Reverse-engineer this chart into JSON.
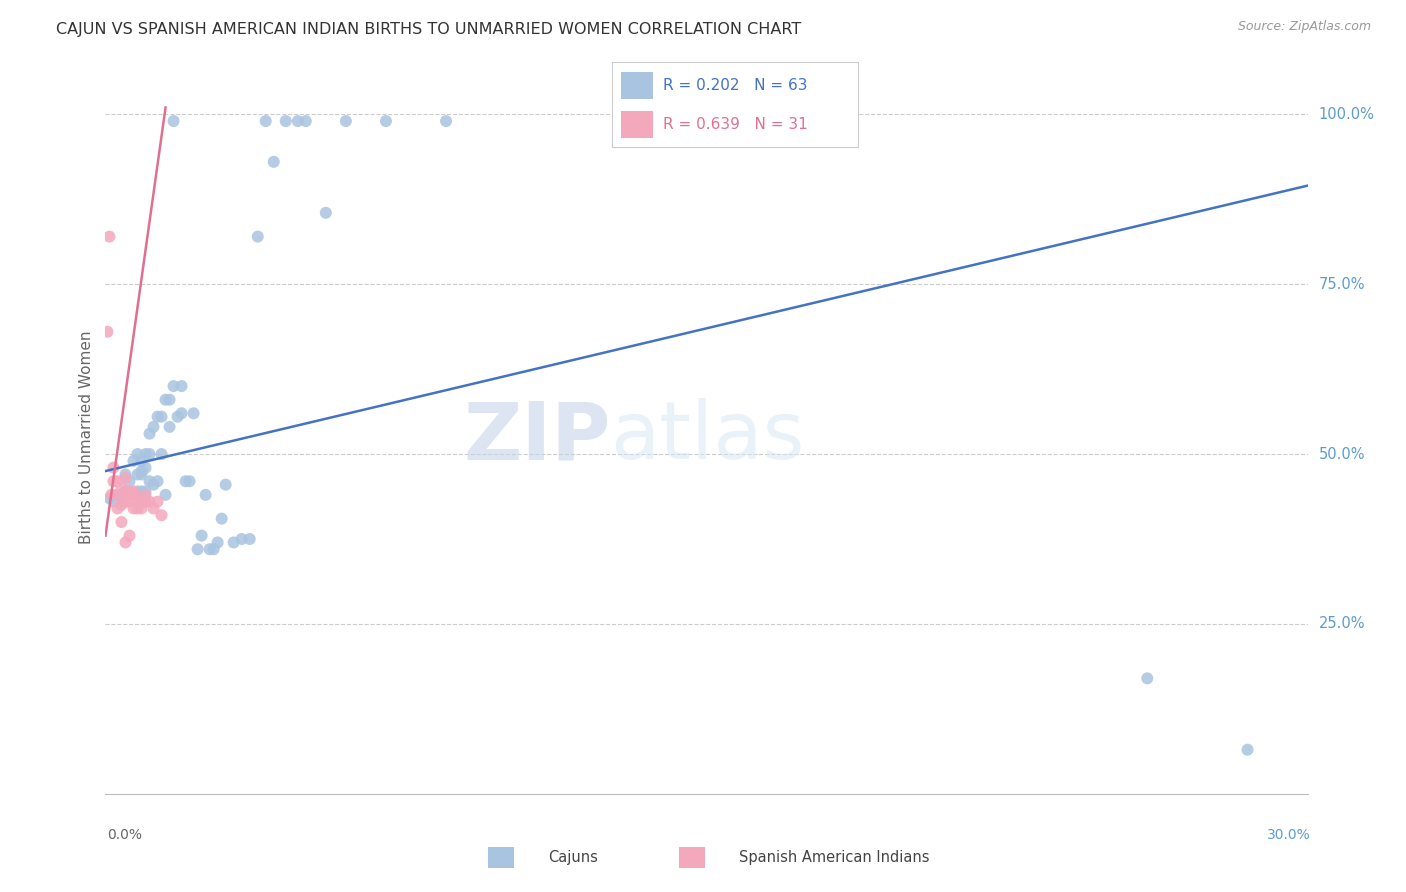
{
  "title": "CAJUN VS SPANISH AMERICAN INDIAN BIRTHS TO UNMARRIED WOMEN CORRELATION CHART",
  "source": "Source: ZipAtlas.com",
  "ylabel": "Births to Unmarried Women",
  "legend_cajuns": "Cajuns",
  "legend_spanish": "Spanish American Indians",
  "r_cajun": "R = 0.202",
  "n_cajun": "N = 63",
  "r_spanish": "R = 0.639",
  "n_spanish": "N = 31",
  "cajun_color": "#A8C4E0",
  "spanish_color": "#F4A8BC",
  "cajun_line_color": "#4472C4",
  "spanish_line_color": "#E07090",
  "watermark_zip": "ZIP",
  "watermark_atlas": "atlas",
  "xmin": 0.0,
  "xmax": 0.3,
  "ymin": 0.0,
  "ymax": 1.05,
  "cajun_scatter_x": [
    0.001,
    0.002,
    0.003,
    0.004,
    0.005,
    0.005,
    0.006,
    0.007,
    0.007,
    0.008,
    0.008,
    0.008,
    0.009,
    0.009,
    0.009,
    0.009,
    0.01,
    0.01,
    0.01,
    0.011,
    0.011,
    0.011,
    0.012,
    0.012,
    0.013,
    0.013,
    0.014,
    0.014,
    0.015,
    0.015,
    0.016,
    0.016,
    0.017,
    0.017,
    0.018,
    0.019,
    0.019,
    0.02,
    0.021,
    0.022,
    0.023,
    0.024,
    0.025,
    0.026,
    0.027,
    0.028,
    0.029,
    0.03,
    0.032,
    0.034,
    0.036,
    0.038,
    0.04,
    0.042,
    0.045,
    0.048,
    0.05,
    0.055,
    0.06,
    0.07,
    0.085,
    0.26,
    0.285
  ],
  "cajun_scatter_y": [
    0.435,
    0.43,
    0.44,
    0.435,
    0.445,
    0.47,
    0.46,
    0.44,
    0.49,
    0.445,
    0.47,
    0.5,
    0.445,
    0.47,
    0.475,
    0.49,
    0.445,
    0.48,
    0.5,
    0.46,
    0.5,
    0.53,
    0.455,
    0.54,
    0.46,
    0.555,
    0.5,
    0.555,
    0.44,
    0.58,
    0.54,
    0.58,
    0.6,
    0.99,
    0.555,
    0.56,
    0.6,
    0.46,
    0.46,
    0.56,
    0.36,
    0.38,
    0.44,
    0.36,
    0.36,
    0.37,
    0.405,
    0.455,
    0.37,
    0.375,
    0.375,
    0.82,
    0.99,
    0.93,
    0.99,
    0.99,
    0.99,
    0.855,
    0.99,
    0.99,
    0.99,
    0.17,
    0.065
  ],
  "spanish_scatter_x": [
    0.0005,
    0.001,
    0.0015,
    0.002,
    0.002,
    0.003,
    0.003,
    0.003,
    0.004,
    0.004,
    0.004,
    0.005,
    0.005,
    0.005,
    0.005,
    0.006,
    0.006,
    0.006,
    0.007,
    0.007,
    0.007,
    0.008,
    0.008,
    0.009,
    0.009,
    0.01,
    0.01,
    0.011,
    0.012,
    0.013,
    0.014
  ],
  "spanish_scatter_y": [
    0.68,
    0.82,
    0.44,
    0.46,
    0.48,
    0.42,
    0.44,
    0.46,
    0.4,
    0.425,
    0.45,
    0.37,
    0.43,
    0.445,
    0.465,
    0.38,
    0.43,
    0.445,
    0.42,
    0.44,
    0.445,
    0.42,
    0.43,
    0.42,
    0.43,
    0.43,
    0.44,
    0.43,
    0.42,
    0.43,
    0.41
  ],
  "cajun_line_x0": 0.0,
  "cajun_line_x1": 0.3,
  "cajun_line_y0": 0.475,
  "cajun_line_y1": 0.895,
  "spanish_line_x0": 0.0,
  "spanish_line_x1": 0.015,
  "spanish_line_y0": 0.38,
  "spanish_line_y1": 1.01
}
